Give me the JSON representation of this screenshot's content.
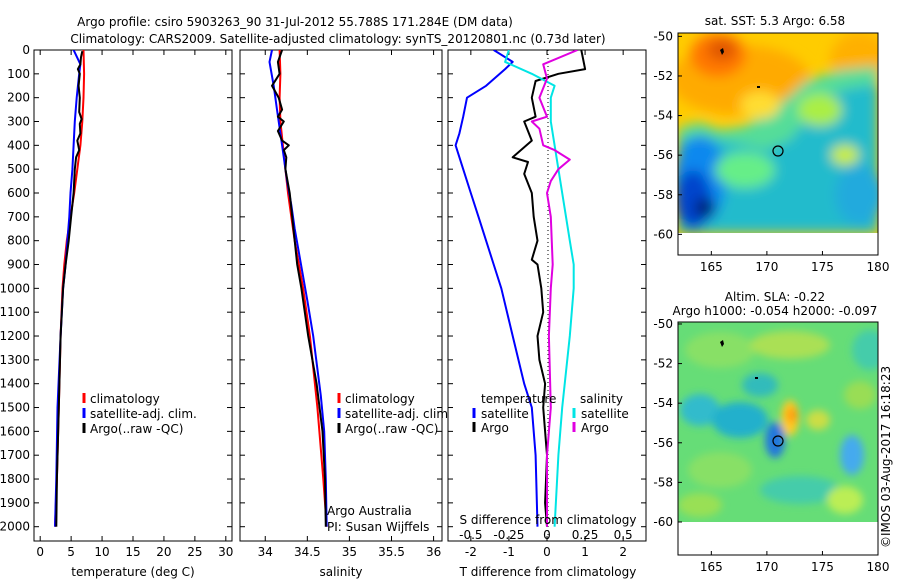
{
  "title": {
    "line1": "Argo profile: csiro 5903263_90 31-Jul-2012 55.788S 171.284E (DM data)",
    "line2": "Climatology: CARS2009. Satellite-adjusted climatology: synTS_20120801.nc (0.73d later)"
  },
  "chart_data": [
    {
      "type": "line",
      "id": "temperature",
      "xlabel": "temperature (deg C)",
      "ylabel": "",
      "xlim": [
        -1,
        31
      ],
      "ylim": [
        2060,
        0
      ],
      "xticks": [
        0,
        5,
        10,
        15,
        20,
        25,
        30
      ],
      "xtick_labels": [
        "0",
        "5",
        "10",
        "15",
        "20",
        "25",
        "30"
      ],
      "yticks": [
        0,
        100,
        200,
        300,
        400,
        500,
        600,
        700,
        800,
        900,
        1000,
        1100,
        1200,
        1300,
        1400,
        1500,
        1600,
        1700,
        1800,
        1900,
        2000
      ],
      "ytick_labels": [
        "0",
        "100",
        "200",
        "300",
        "400",
        "500",
        "600",
        "700",
        "800",
        "900",
        "1000",
        "1100",
        "1200",
        "1300",
        "1400",
        "1500",
        "1600",
        "1700",
        "1800",
        "1900",
        "2000"
      ],
      "legend": [
        "climatology",
        "satellite-adj. clim.",
        "Argo(..raw -QC)"
      ],
      "legend_colors": [
        "#ff0000",
        "#0000ff",
        "#000000"
      ],
      "legend_position": "lower-right",
      "series": [
        {
          "name": "climatology",
          "color": "#ff0000",
          "points": [
            [
              7.0,
              0
            ],
            [
              7.1,
              100
            ],
            [
              7.0,
              200
            ],
            [
              6.8,
              300
            ],
            [
              6.5,
              400
            ],
            [
              6.0,
              500
            ],
            [
              5.5,
              600
            ],
            [
              4.9,
              700
            ],
            [
              4.3,
              800
            ],
            [
              3.9,
              900
            ],
            [
              3.6,
              1000
            ],
            [
              3.3,
              1200
            ],
            [
              3.0,
              1500
            ],
            [
              2.7,
              1800
            ],
            [
              2.4,
              2000
            ]
          ]
        },
        {
          "name": "satellite-adj. clim.",
          "color": "#0000ff",
          "points": [
            [
              5.4,
              0
            ],
            [
              6.5,
              60
            ],
            [
              6.3,
              100
            ],
            [
              5.9,
              200
            ],
            [
              5.6,
              300
            ],
            [
              5.4,
              400
            ],
            [
              5.2,
              500
            ],
            [
              4.9,
              600
            ],
            [
              4.7,
              700
            ],
            [
              4.4,
              800
            ],
            [
              4.1,
              900
            ],
            [
              3.7,
              1000
            ],
            [
              3.3,
              1200
            ],
            [
              2.8,
              1500
            ],
            [
              2.6,
              1800
            ],
            [
              2.4,
              2000
            ]
          ]
        },
        {
          "name": "Argo",
          "color": "#000000",
          "points": [
            [
              6.8,
              5
            ],
            [
              6.6,
              30
            ],
            [
              6.5,
              60
            ],
            [
              6.1,
              80
            ],
            [
              6.4,
              100
            ],
            [
              6.2,
              150
            ],
            [
              6.4,
              200
            ],
            [
              6.3,
              260
            ],
            [
              6.7,
              290
            ],
            [
              6.4,
              310
            ],
            [
              6.5,
              350
            ],
            [
              6.0,
              380
            ],
            [
              6.3,
              420
            ],
            [
              5.8,
              450
            ],
            [
              5.6,
              500
            ],
            [
              5.4,
              600
            ],
            [
              5.0,
              700
            ],
            [
              4.6,
              800
            ],
            [
              4.1,
              900
            ],
            [
              3.7,
              1000
            ],
            [
              3.3,
              1200
            ],
            [
              3.0,
              1500
            ],
            [
              2.7,
              1800
            ],
            [
              2.6,
              2000
            ]
          ]
        }
      ]
    },
    {
      "type": "line",
      "id": "salinity",
      "xlabel": "salinity",
      "ylabel": "",
      "xlim": [
        33.7,
        36.1
      ],
      "ylim": [
        2060,
        0
      ],
      "xticks": [
        34,
        34.5,
        35,
        35.5,
        36
      ],
      "xtick_labels": [
        "34",
        "34.5",
        "35",
        "35.5",
        "36"
      ],
      "legend": [
        "climatology",
        "satellite-adj. clim.",
        "Argo(..raw -QC)"
      ],
      "legend_colors": [
        "#ff0000",
        "#0000ff",
        "#000000"
      ],
      "legend_position": "lower-right",
      "annotation": [
        "Argo Australia",
        "PI: Susan Wijffels"
      ],
      "series": [
        {
          "name": "climatology",
          "color": "#ff0000",
          "points": [
            [
              34.17,
              0
            ],
            [
              34.18,
              100
            ],
            [
              34.17,
              200
            ],
            [
              34.18,
              300
            ],
            [
              34.21,
              400
            ],
            [
              34.24,
              500
            ],
            [
              34.27,
              600
            ],
            [
              34.31,
              700
            ],
            [
              34.35,
              800
            ],
            [
              34.4,
              900
            ],
            [
              34.45,
              1000
            ],
            [
              34.53,
              1200
            ],
            [
              34.62,
              1500
            ],
            [
              34.69,
              1800
            ],
            [
              34.73,
              2000
            ]
          ]
        },
        {
          "name": "satellite-adj. clim.",
          "color": "#0000ff",
          "points": [
            [
              34.08,
              0
            ],
            [
              34.05,
              50
            ],
            [
              34.1,
              150
            ],
            [
              34.14,
              250
            ],
            [
              34.18,
              350
            ],
            [
              34.22,
              450
            ],
            [
              34.26,
              550
            ],
            [
              34.31,
              650
            ],
            [
              34.35,
              750
            ],
            [
              34.4,
              850
            ],
            [
              34.45,
              950
            ],
            [
              34.5,
              1050
            ],
            [
              34.57,
              1200
            ],
            [
              34.66,
              1450
            ],
            [
              34.7,
              1600
            ],
            [
              34.72,
              1800
            ],
            [
              34.73,
              2000
            ]
          ]
        },
        {
          "name": "Argo",
          "color": "#000000",
          "points": [
            [
              34.2,
              0
            ],
            [
              34.15,
              50
            ],
            [
              34.17,
              100
            ],
            [
              34.08,
              150
            ],
            [
              34.16,
              200
            ],
            [
              34.2,
              250
            ],
            [
              34.15,
              280
            ],
            [
              34.22,
              300
            ],
            [
              34.15,
              340
            ],
            [
              34.2,
              380
            ],
            [
              34.28,
              400
            ],
            [
              34.22,
              420
            ],
            [
              34.25,
              450
            ],
            [
              34.24,
              500
            ],
            [
              34.29,
              600
            ],
            [
              34.32,
              700
            ],
            [
              34.35,
              800
            ],
            [
              34.38,
              900
            ],
            [
              34.43,
              1000
            ],
            [
              34.51,
              1200
            ],
            [
              34.61,
              1400
            ],
            [
              34.68,
              1600
            ],
            [
              34.71,
              1800
            ],
            [
              34.72,
              2000
            ]
          ]
        }
      ]
    },
    {
      "type": "line",
      "id": "differences",
      "xlabel": "T difference from climatology",
      "top_axis_label": "S difference from climatology",
      "xlim": [
        -2.6,
        2.6
      ],
      "ylim": [
        2060,
        0
      ],
      "xticks": [
        -2,
        -1,
        0,
        1,
        2
      ],
      "xtick_labels": [
        "-2",
        "-1",
        "0",
        "1",
        "2"
      ],
      "s_xticks": [
        -0.5,
        -0.25,
        0,
        0.25,
        0.5
      ],
      "s_xtick_labels": [
        "-0.5",
        "-0.25",
        "0",
        "0.25",
        "0.5"
      ],
      "legend_temperature_title": "temperature",
      "legend_salinity_title": "salinity",
      "legend": [
        "satellite",
        "Argo",
        "satellite",
        "Argo"
      ],
      "legend_colors": [
        "#0000ff",
        "#000000",
        "#00e5e5",
        "#e000e0"
      ],
      "legend_position": "lower-center",
      "series": [
        {
          "name": "temperature satellite",
          "color": "#0000ff",
          "points": [
            [
              -1.4,
              0
            ],
            [
              -0.9,
              50
            ],
            [
              -1.1,
              80
            ],
            [
              -1.6,
              150
            ],
            [
              -2.1,
              200
            ],
            [
              -2.2,
              280
            ],
            [
              -2.3,
              350
            ],
            [
              -2.4,
              400
            ],
            [
              -2.2,
              500
            ],
            [
              -2.0,
              600
            ],
            [
              -1.8,
              700
            ],
            [
              -1.6,
              800
            ],
            [
              -1.4,
              900
            ],
            [
              -1.2,
              1000
            ],
            [
              -0.9,
              1200
            ],
            [
              -0.6,
              1400
            ],
            [
              -0.4,
              1500
            ],
            [
              -0.3,
              1700
            ],
            [
              -0.25,
              2000
            ]
          ]
        },
        {
          "name": "temperature Argo",
          "color": "#000000",
          "points": [
            [
              0.9,
              0
            ],
            [
              1.0,
              80
            ],
            [
              0.3,
              100
            ],
            [
              -0.3,
              130
            ],
            [
              -0.4,
              200
            ],
            [
              -0.3,
              280
            ],
            [
              -0.6,
              300
            ],
            [
              -0.4,
              380
            ],
            [
              -0.9,
              450
            ],
            [
              -0.5,
              470
            ],
            [
              -0.6,
              520
            ],
            [
              -0.4,
              600
            ],
            [
              -0.35,
              700
            ],
            [
              -0.25,
              800
            ],
            [
              -0.4,
              880
            ],
            [
              -0.25,
              900
            ],
            [
              -0.15,
              1000
            ],
            [
              -0.1,
              1100
            ],
            [
              -0.25,
              1200
            ],
            [
              -0.2,
              1300
            ],
            [
              -0.05,
              1400
            ],
            [
              -0.1,
              1500
            ],
            [
              0.0,
              1700
            ],
            [
              -0.05,
              1900
            ],
            [
              0.0,
              2000
            ]
          ]
        },
        {
          "name": "salinity satellite",
          "color": "#00e5e5",
          "points": [
            [
              -1.0,
              0
            ],
            [
              -1.1,
              50
            ],
            [
              -0.4,
              100
            ],
            [
              0.2,
              150
            ],
            [
              0.1,
              200
            ],
            [
              0.1,
              300
            ],
            [
              0.2,
              400
            ],
            [
              0.3,
              500
            ],
            [
              0.4,
              600
            ],
            [
              0.5,
              700
            ],
            [
              0.6,
              800
            ],
            [
              0.7,
              900
            ],
            [
              0.7,
              1000
            ],
            [
              0.6,
              1200
            ],
            [
              0.4,
              1500
            ],
            [
              0.3,
              1700
            ],
            [
              0.2,
              2000
            ]
          ]
        },
        {
          "name": "salinity Argo",
          "color": "#e000e0",
          "points": [
            [
              0.8,
              0
            ],
            [
              -0.1,
              60
            ],
            [
              0.0,
              120
            ],
            [
              -0.2,
              200
            ],
            [
              0.0,
              280
            ],
            [
              -0.4,
              300
            ],
            [
              -0.2,
              330
            ],
            [
              -0.1,
              400
            ],
            [
              0.2,
              420
            ],
            [
              0.6,
              460
            ],
            [
              0.3,
              500
            ],
            [
              0.1,
              550
            ],
            [
              0.0,
              600
            ],
            [
              0.1,
              700
            ],
            [
              0.15,
              900
            ],
            [
              0.1,
              1000
            ],
            [
              0.05,
              1200
            ],
            [
              0.1,
              1500
            ],
            [
              0.0,
              1700
            ],
            [
              0.0,
              2000
            ]
          ]
        }
      ]
    },
    {
      "type": "heatmap",
      "id": "sst_map",
      "title": "sat. SST: 5.3 Argo: 6.58",
      "xlim": [
        162,
        180
      ],
      "ylim": [
        -61,
        -49.5
      ],
      "xticks": [
        165,
        170,
        175,
        180
      ],
      "xtick_labels": [
        "165",
        "170",
        "175",
        "180"
      ],
      "yticks": [
        -50,
        -52,
        -54,
        -56,
        -58,
        -60
      ],
      "ytick_labels": [
        "-50",
        "-52",
        "-54",
        "-56",
        "-58",
        "-60"
      ],
      "float_position": [
        171.284,
        -55.788
      ]
    },
    {
      "type": "heatmap",
      "id": "sla_map",
      "title_line1": "Altim. SLA: -0.22",
      "title_line2": "Argo h1000: -0.054 h2000: -0.097",
      "xlim": [
        162,
        180
      ],
      "ylim": [
        -61,
        -49.5
      ],
      "xticks": [
        165,
        170,
        175,
        180
      ],
      "xtick_labels": [
        "165",
        "170",
        "175",
        "180"
      ],
      "yticks": [
        -50,
        -52,
        -54,
        -56,
        -58,
        -60
      ],
      "ytick_labels": [
        "-50",
        "-52",
        "-54",
        "-56",
        "-58",
        "-60"
      ],
      "float_position": [
        171.284,
        -55.788
      ]
    }
  ],
  "colors": {
    "climatology": "#ff0000",
    "satellite": "#0000ff",
    "argo": "#000000",
    "salinity_satellite": "#00e5e5",
    "salinity_argo": "#e000e0"
  },
  "watermark": "©IMOS 03-Aug-2017 16:18:23"
}
